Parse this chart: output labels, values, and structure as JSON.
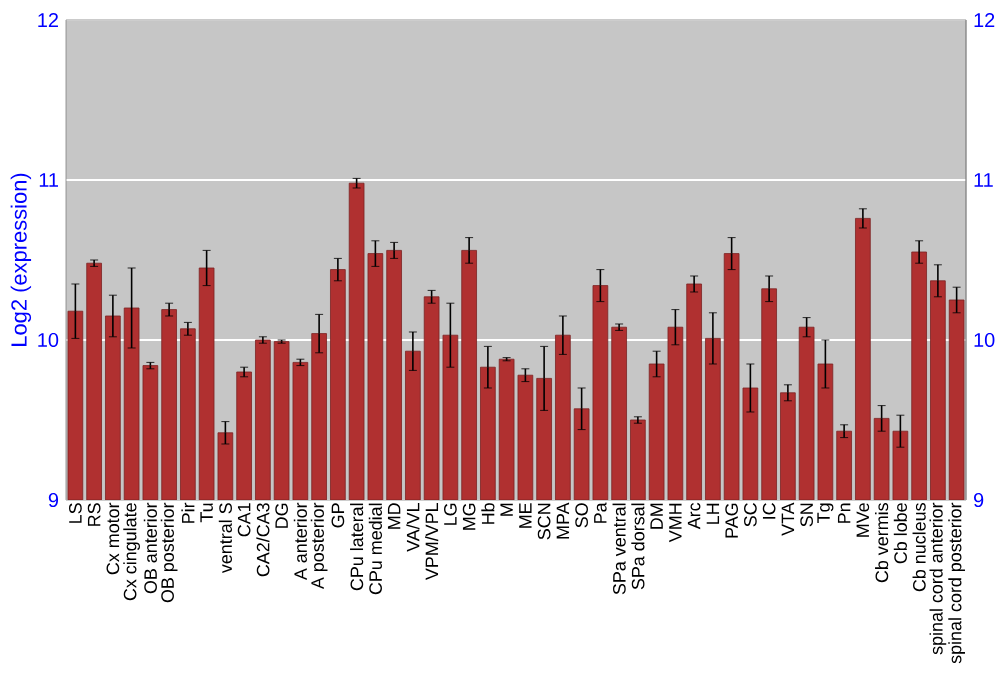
{
  "chart_data": {
    "type": "bar",
    "ylabel": "Log2 (expression)",
    "categories": [
      "LS",
      "RS",
      "Cx motor",
      "Cx cingulate",
      "OB anterior",
      "OB posterior",
      "Pir",
      "Tu",
      "ventral S",
      "CA1",
      "CA2/CA3",
      "DG",
      "A anterior",
      "A posterior",
      "GP",
      "CPu lateral",
      "CPu medial",
      "MD",
      "VA/VL",
      "VPM/VPL",
      "LG",
      "MG",
      "Hb",
      "M",
      "ME",
      "SCN",
      "MPA",
      "SO",
      "Pa",
      "SPa ventral",
      "SPa dorsal",
      "DM",
      "VMH",
      "Arc",
      "LH",
      "PAG",
      "SC",
      "IC",
      "VTA",
      "SN",
      "Tg",
      "Pn",
      "MVe",
      "Cb vermis",
      "Cb lobe",
      "Cb nucleus",
      "spinal cord anterior",
      "spinal cord posterior"
    ],
    "values": [
      10.18,
      10.48,
      10.15,
      10.2,
      9.84,
      10.19,
      10.07,
      10.45,
      9.42,
      9.8,
      10.0,
      9.99,
      9.86,
      10.04,
      10.44,
      10.98,
      10.54,
      10.56,
      9.93,
      10.27,
      10.03,
      10.56,
      9.83,
      9.88,
      9.78,
      9.76,
      10.03,
      9.57,
      10.34,
      10.08,
      9.5,
      9.85,
      10.08,
      10.35,
      10.01,
      10.54,
      9.7,
      10.32,
      9.67,
      10.08,
      9.85,
      9.43,
      10.76,
      9.51,
      9.43,
      10.55,
      10.37,
      10.25
    ],
    "errors": [
      0.17,
      0.02,
      0.13,
      0.25,
      0.02,
      0.04,
      0.04,
      0.11,
      0.07,
      0.03,
      0.02,
      0.01,
      0.02,
      0.12,
      0.07,
      0.03,
      0.08,
      0.05,
      0.12,
      0.04,
      0.2,
      0.08,
      0.13,
      0.01,
      0.04,
      0.2,
      0.12,
      0.13,
      0.1,
      0.02,
      0.02,
      0.08,
      0.11,
      0.05,
      0.16,
      0.1,
      0.15,
      0.08,
      0.05,
      0.06,
      0.15,
      0.04,
      0.06,
      0.08,
      0.1,
      0.07,
      0.1,
      0.08
    ],
    "color": "#b03030",
    "ylim": [
      9,
      12
    ],
    "yticks": [
      9,
      10,
      11,
      12
    ],
    "y2lim": [
      9,
      12
    ],
    "y2ticks": [
      9,
      10,
      11,
      12
    ],
    "grid": "y"
  }
}
